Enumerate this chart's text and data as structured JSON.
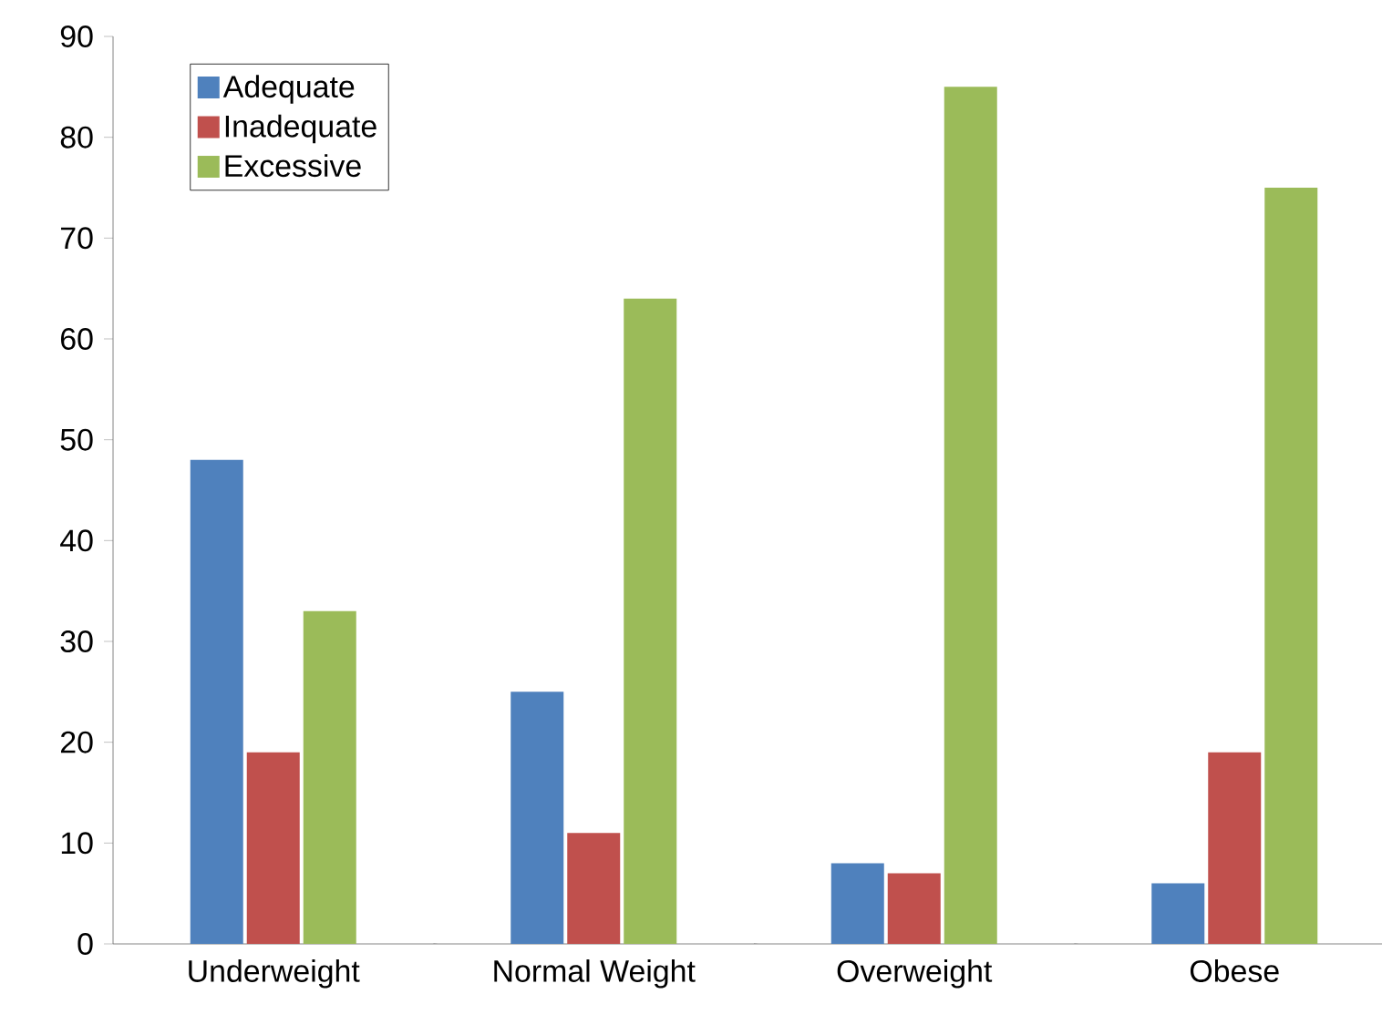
{
  "chart_data": {
    "type": "bar",
    "categories": [
      "Underweight",
      "Normal Weight",
      "Overweight",
      "Obese"
    ],
    "series": [
      {
        "name": "Adequate",
        "color": "#4f81bd",
        "values": [
          48,
          25,
          8,
          6
        ]
      },
      {
        "name": "Inadequate",
        "color": "#c0504d",
        "values": [
          19,
          11,
          7,
          19
        ]
      },
      {
        "name": "Excessive",
        "color": "#9bbb59",
        "values": [
          33,
          64,
          85,
          75
        ]
      }
    ],
    "ylim": [
      0,
      90
    ],
    "yticks": [
      0,
      10,
      20,
      30,
      40,
      50,
      60,
      70,
      80,
      90
    ],
    "grid": false,
    "legend": "top left"
  }
}
